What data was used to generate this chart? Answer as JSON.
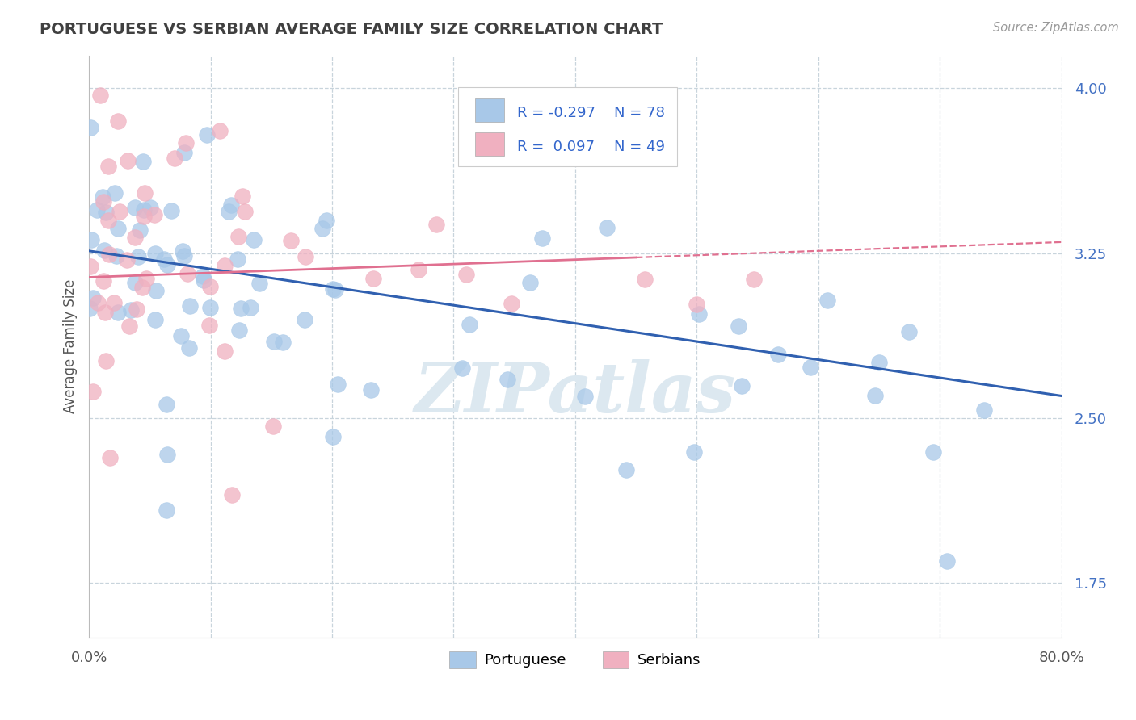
{
  "title": "PORTUGUESE VS SERBIAN AVERAGE FAMILY SIZE CORRELATION CHART",
  "source_text": "Source: ZipAtlas.com",
  "ylabel": "Average Family Size",
  "yticks": [
    1.75,
    2.5,
    3.25,
    4.0
  ],
  "xmin": 0.0,
  "xmax": 80.0,
  "ymin": 1.5,
  "ymax": 4.15,
  "portuguese_color": "#a8c8e8",
  "serbian_color": "#f0b0c0",
  "portuguese_R": -0.297,
  "portuguese_N": 78,
  "serbian_R": 0.097,
  "serbian_N": 49,
  "trend_blue": "#3060b0",
  "trend_pink": "#e07090",
  "background_color": "#ffffff",
  "grid_color": "#c8d4dc",
  "title_color": "#404040",
  "legend_color": "#3366cc",
  "watermark_color": "#dce8f0",
  "blue_trend_y0": 3.26,
  "blue_trend_y1": 2.6,
  "pink_trend_y0": 3.14,
  "pink_trend_y1": 3.3,
  "pink_solid_xmax": 45.0
}
